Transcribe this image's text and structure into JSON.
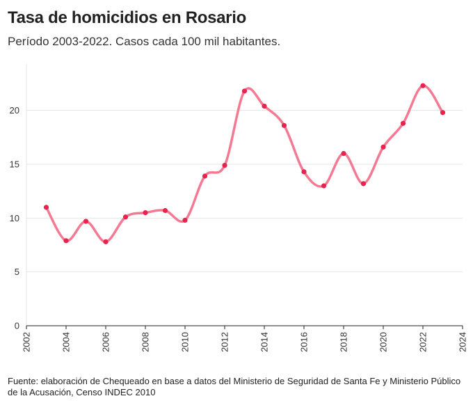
{
  "header": {
    "title": "Tasa de homicidios en Rosario",
    "subtitle": "Período 2003-2022. Casos cada 100 mil habitantes."
  },
  "footer": {
    "source": "Fuente: elaboración de Chequeado en base a datos del Ministerio de Seguridad de Santa Fe y Ministerio Público de la Acusación, Censo INDEC 2010"
  },
  "colors": {
    "line": "#f47a93",
    "point": "#e8244e",
    "grid": "#e6e6e6",
    "axis": "#222222"
  },
  "chart_data": {
    "type": "line",
    "title": "Tasa de homicidios en Rosario",
    "subtitle": "Período 2003-2022. Casos cada 100 mil habitantes.",
    "xlim": [
      2002,
      2024
    ],
    "ylim": [
      0,
      22.5
    ],
    "xticks": [
      2002,
      2004,
      2006,
      2008,
      2010,
      2012,
      2014,
      2016,
      2018,
      2020,
      2022,
      2024
    ],
    "yticks": [
      0,
      5,
      10,
      15,
      20
    ],
    "grid": "horizontal",
    "series": [
      {
        "x": [
          2003,
          2004,
          2005,
          2006,
          2007,
          2008,
          2009,
          2010,
          2011,
          2012,
          2013,
          2014,
          2015,
          2016,
          2017,
          2018,
          2019,
          2020,
          2021,
          2022,
          2023
        ],
        "y": [
          11.0,
          7.9,
          9.7,
          7.8,
          10.1,
          10.5,
          10.7,
          9.8,
          13.9,
          14.9,
          21.8,
          20.4,
          18.6,
          14.3,
          13.0,
          16.0,
          13.2,
          16.6,
          18.8,
          22.3,
          19.8
        ]
      }
    ]
  }
}
